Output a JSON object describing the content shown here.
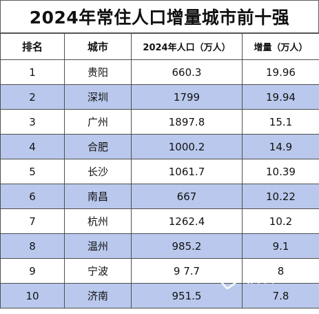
{
  "title": "2024年常住人口增量城市前十强",
  "headers": {
    "rank": "排名",
    "city": "城市",
    "population": "2024年人口（万人）",
    "increase": "增量（万人）"
  },
  "rows": [
    {
      "rank": "1",
      "city": "贵阳",
      "population": "660.3",
      "increase": "19.96"
    },
    {
      "rank": "2",
      "city": "深圳",
      "population": "1799",
      "increase": "19.94"
    },
    {
      "rank": "3",
      "city": "广州",
      "population": "1897.8",
      "increase": "15.1"
    },
    {
      "rank": "4",
      "city": "合肥",
      "population": "1000.2",
      "increase": "14.9"
    },
    {
      "rank": "5",
      "city": "长沙",
      "population": "1061.7",
      "increase": "10.39"
    },
    {
      "rank": "6",
      "city": "南昌",
      "population": "667",
      "increase": "10.22"
    },
    {
      "rank": "7",
      "city": "杭州",
      "population": "1262.4",
      "increase": "10.2"
    },
    {
      "rank": "8",
      "city": "温州",
      "population": "985.2",
      "increase": "9.1"
    },
    {
      "rank": "9",
      "city": "宁波",
      "population": "9 7.7",
      "increase": "8"
    },
    {
      "rank": "10",
      "city": "济南",
      "population": "951.5",
      "increase": "7.8"
    }
  ],
  "watermark": {
    "text": "信客",
    "icon": "heart-logo-icon",
    "color": "#ffffff"
  },
  "colors": {
    "band": "#b9c8ec",
    "border": "#4e4e4e"
  }
}
